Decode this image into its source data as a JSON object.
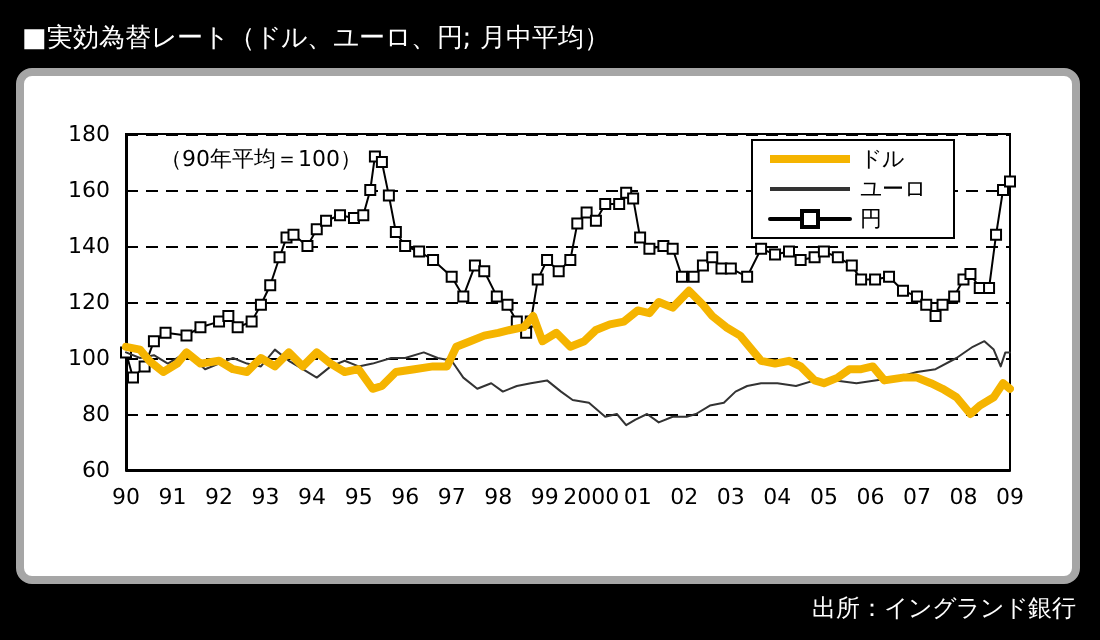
{
  "chart_data": {
    "type": "line",
    "title": "■実効為替レート（ドル、ユーロ、円; 月中平均）",
    "annotations": [
      "（90年平均＝100）",
      "出所：イングランド銀行"
    ],
    "xlim": [
      1990,
      2009
    ],
    "xticks": [
      {
        "value": 1990,
        "label": "90"
      },
      {
        "value": 1991,
        "label": "91"
      },
      {
        "value": 1992,
        "label": "92"
      },
      {
        "value": 1993,
        "label": "93"
      },
      {
        "value": 1994,
        "label": "94"
      },
      {
        "value": 1995,
        "label": "95"
      },
      {
        "value": 1996,
        "label": "96"
      },
      {
        "value": 1997,
        "label": "97"
      },
      {
        "value": 1998,
        "label": "98"
      },
      {
        "value": 1999,
        "label": "99"
      },
      {
        "value": 2000,
        "label": "2000"
      },
      {
        "value": 2001,
        "label": "01"
      },
      {
        "value": 2002,
        "label": "02"
      },
      {
        "value": 2003,
        "label": "03"
      },
      {
        "value": 2004,
        "label": "04"
      },
      {
        "value": 2005,
        "label": "05"
      },
      {
        "value": 2006,
        "label": "06"
      },
      {
        "value": 2007,
        "label": "07"
      },
      {
        "value": 2008,
        "label": "08"
      },
      {
        "value": 2009,
        "label": "09"
      }
    ],
    "ylim": [
      60,
      180
    ],
    "yticks": [
      60,
      80,
      100,
      120,
      140,
      160,
      180
    ],
    "grid": "y",
    "legend": "top right",
    "series": [
      {
        "name": "ドル",
        "color": "#f5b400",
        "x": [
          1990,
          1990.3,
          1990.5,
          1990.8,
          1991.1,
          1991.3,
          1991.6,
          1992,
          1992.3,
          1992.6,
          1992.9,
          1993.2,
          1993.5,
          1993.8,
          1994.1,
          1994.4,
          1994.7,
          1995,
          1995.3,
          1995.5,
          1995.8,
          1996.2,
          1996.6,
          1996.9,
          1997.1,
          1997.4,
          1997.7,
          1998,
          1998.25,
          1998.55,
          1998.75,
          1998.95,
          1999.25,
          1999.55,
          1999.85,
          2000.1,
          2000.4,
          2000.7,
          2001,
          2001.25,
          2001.45,
          2001.75,
          2002.1,
          2002.4,
          2002.6,
          2002.9,
          2003.2,
          2003.45,
          2003.65,
          2003.95,
          2004.25,
          2004.5,
          2004.8,
          2005,
          2005.3,
          2005.55,
          2005.8,
          2006.05,
          2006.3,
          2006.7,
          2007,
          2007.3,
          2007.55,
          2007.85,
          2008.15,
          2008.35,
          2008.65,
          2008.85,
          2009
        ],
        "values": [
          104,
          103,
          99,
          95,
          98,
          102,
          98,
          99,
          96,
          95,
          100,
          97,
          102,
          97,
          102,
          98,
          95,
          96,
          89,
          90,
          95,
          96,
          97,
          97,
          104,
          106,
          108,
          109,
          110,
          111,
          115,
          106,
          109,
          104,
          106,
          110,
          112,
          113,
          117,
          116,
          120,
          118,
          124,
          119,
          115,
          111,
          108,
          103,
          99,
          98,
          99,
          97,
          92,
          91,
          93,
          96,
          96,
          97,
          92,
          93,
          93,
          91,
          89,
          86,
          80,
          83,
          86,
          91,
          89
        ]
      },
      {
        "name": "ユーロ",
        "color": "#333333",
        "x": [
          1990,
          1990.3,
          1990.6,
          1990.9,
          1991.3,
          1991.7,
          1992,
          1992.3,
          1992.6,
          1992.9,
          1993.2,
          1993.5,
          1993.8,
          1994.1,
          1994.4,
          1994.7,
          1995,
          1995.3,
          1995.7,
          1996,
          1996.4,
          1996.7,
          1997,
          1997.25,
          1997.55,
          1997.85,
          1998.1,
          1998.4,
          1998.7,
          1999.05,
          1999.35,
          1999.6,
          1999.95,
          2000.3,
          2000.55,
          2000.75,
          2000.95,
          2001.2,
          2001.45,
          2001.75,
          2002.05,
          2002.25,
          2002.55,
          2002.85,
          2003.1,
          2003.35,
          2003.65,
          2004,
          2004.4,
          2004.8,
          2005.25,
          2005.7,
          2006.1,
          2006.55,
          2007,
          2007.4,
          2007.85,
          2008.2,
          2008.45,
          2008.65,
          2008.8,
          2008.9,
          2009
        ],
        "values": [
          102,
          100,
          101,
          98,
          102,
          96,
          98,
          100,
          98,
          97,
          103,
          99,
          96,
          93,
          97,
          99,
          97,
          98,
          100,
          100,
          102,
          100,
          99,
          93,
          89,
          91,
          88,
          90,
          91,
          92,
          88,
          85,
          84,
          79,
          80,
          76,
          78,
          80,
          77,
          79,
          79,
          80,
          83,
          84,
          88,
          90,
          91,
          91,
          90,
          92,
          92,
          91,
          92,
          93,
          95,
          96,
          100,
          104,
          106,
          103,
          97,
          102,
          102
        ]
      },
      {
        "name": "円",
        "color": "#000000",
        "marker": "square",
        "x": [
          1990,
          1990.15,
          1990.4,
          1990.6,
          1990.85,
          1991.3,
          1991.6,
          1992,
          1992.2,
          1992.4,
          1992.7,
          1992.9,
          1993.1,
          1993.3,
          1993.45,
          1993.6,
          1993.9,
          1994.1,
          1994.3,
          1994.6,
          1994.9,
          1995.1,
          1995.25,
          1995.35,
          1995.5,
          1995.65,
          1995.8,
          1996,
          1996.3,
          1996.6,
          1997,
          1997.25,
          1997.5,
          1997.7,
          1997.97,
          1998.2,
          1998.4,
          1998.6,
          1998.7,
          1998.85,
          1999.05,
          1999.3,
          1999.55,
          1999.7,
          1999.9,
          2000.1,
          2000.3,
          2000.6,
          2000.75,
          2000.9,
          2001.05,
          2001.25,
          2001.55,
          2001.75,
          2001.95,
          2002.2,
          2002.4,
          2002.6,
          2002.8,
          2003.0,
          2003.35,
          2003.65,
          2003.95,
          2004.25,
          2004.5,
          2004.8,
          2005,
          2005.3,
          2005.6,
          2005.8,
          2006.1,
          2006.4,
          2006.7,
          2007,
          2007.2,
          2007.4,
          2007.55,
          2007.8,
          2008,
          2008.15,
          2008.35,
          2008.55,
          2008.7,
          2008.85,
          2009
        ],
        "values": [
          102,
          93,
          97,
          106,
          109,
          108,
          111,
          113,
          115,
          111,
          113,
          119,
          126,
          136,
          143,
          144,
          140,
          146,
          149,
          151,
          150,
          151,
          160,
          172,
          170,
          158,
          145,
          140,
          138,
          135,
          129,
          122,
          133,
          131,
          122,
          119,
          113,
          109,
          113,
          128,
          135,
          131,
          135,
          148,
          152,
          149,
          155,
          155,
          159,
          157,
          143,
          139,
          140,
          139,
          129,
          129,
          133,
          136,
          132,
          132,
          129,
          139,
          137,
          138,
          135,
          136,
          138,
          136,
          133,
          128,
          128,
          129,
          124,
          122,
          119,
          115,
          119,
          122,
          128,
          130,
          125,
          125,
          144,
          160,
          163
        ]
      }
    ]
  }
}
